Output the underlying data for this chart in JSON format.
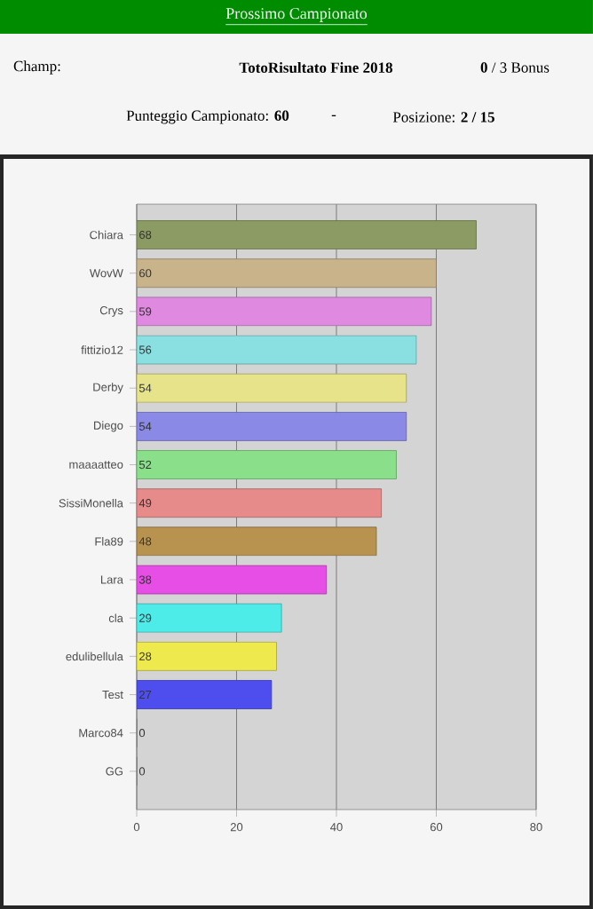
{
  "chart_data": {
    "type": "bar",
    "orientation": "horizontal",
    "title": "Prossimo Campionato",
    "annotations": [
      "Champ:",
      "TotoRisultato Fine 2018",
      "**0** / 3  Bonus",
      "Punteggio Campionato: **60**",
      "-",
      "Posizione: **2 / 15**"
    ],
    "categories": [
      "Chiara",
      "WovW",
      "Crys",
      "fittizio12",
      "Derby",
      "Diego",
      "maaaatteo",
      "SissiMonella",
      "Fla89",
      "Lara",
      "cla",
      "edulibellula",
      "Test",
      "Marco84",
      "GG"
    ],
    "values": [
      68,
      60,
      59,
      56,
      54,
      54,
      52,
      49,
      48,
      38,
      29,
      28,
      27,
      0,
      0
    ],
    "colors": [
      "#8c9a63",
      "#c8b38a",
      "#df8ae0",
      "#8adfe0",
      "#e6e38a",
      "#8a8ae6",
      "#8ae08a",
      "#e68a8a",
      "#b8924f",
      "#e64ee6",
      "#4eece8",
      "#eeea4e",
      "#4e4eee",
      "#888888",
      "#888888"
    ],
    "data_labels": true,
    "xlim": [
      0,
      80
    ],
    "xticks": [
      0,
      20,
      40,
      60,
      80
    ],
    "grid": "x"
  }
}
